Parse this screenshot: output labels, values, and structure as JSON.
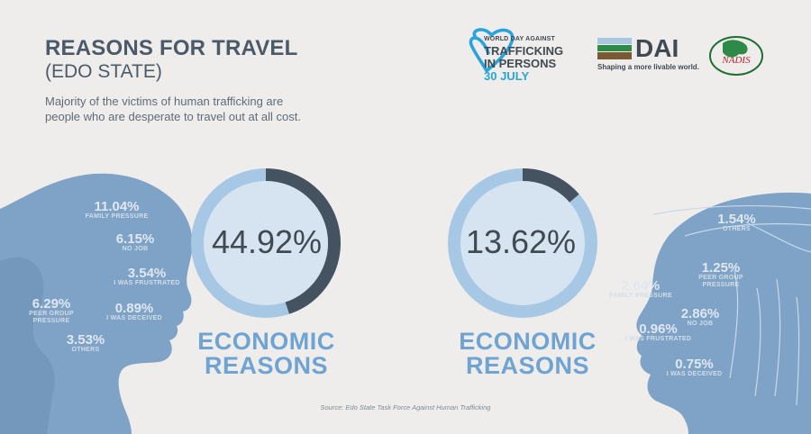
{
  "header": {
    "title_line1": "REASONS FOR TRAVEL",
    "title_line2": "(EDO STATE)",
    "subtitle": "Majority of the victims of human trafficking are people who are desperate to travel out at all cost."
  },
  "logos": {
    "wdat": {
      "small": "WORLD DAY AGAINST",
      "line1": "TRAFFICKING",
      "line2": "IN PERSONS",
      "date": "30 JULY"
    },
    "dai": {
      "name": "DAI",
      "tagline": "Shaping a more livable world."
    },
    "nadis": {
      "text": "NADIS"
    }
  },
  "chart_data": [
    {
      "type": "pie",
      "title": "ECONOMIC REASONS",
      "value_label": "44.92%",
      "values": [
        44.92
      ]
    },
    {
      "type": "pie",
      "title": "ECONOMIC REASONS",
      "value_label": "13.62%",
      "values": [
        13.62
      ]
    }
  ],
  "left_stats": [
    {
      "value": "11.04%",
      "label": "FAMILY PRESSURE"
    },
    {
      "value": "6.15%",
      "label": "NO JOB"
    },
    {
      "value": "3.54%",
      "label": "I WAS FRUSTRATED"
    },
    {
      "value": "6.29%",
      "label": "PEER GROUP PRESSURE"
    },
    {
      "value": "0.89%",
      "label": "I WAS DECEIVED"
    },
    {
      "value": "3.53%",
      "label": "OTHERS"
    }
  ],
  "right_stats": [
    {
      "value": "1.54%",
      "label": "OTHERS"
    },
    {
      "value": "1.25%",
      "label": "PEER GROUP PRESSURE"
    },
    {
      "value": "2.64%",
      "label": "FAMILY PRESSURE"
    },
    {
      "value": "2.86%",
      "label": "NO JOB"
    },
    {
      "value": "0.96%",
      "label": "I WAS FRUSTRATED"
    },
    {
      "value": "0.75%",
      "label": "I WAS DECEIVED"
    }
  ],
  "source": "Source: Edo State Task Force Against Human Trafficking",
  "colors": {
    "background": "#efedeb",
    "ring_light": "#a6c8e4",
    "ring_inner": "#d6e4f1",
    "ring_dark": "#44535f",
    "silhouette": "#7fa3c6",
    "accent_text": "#6fa3d2",
    "heading": "#4a5a68"
  }
}
